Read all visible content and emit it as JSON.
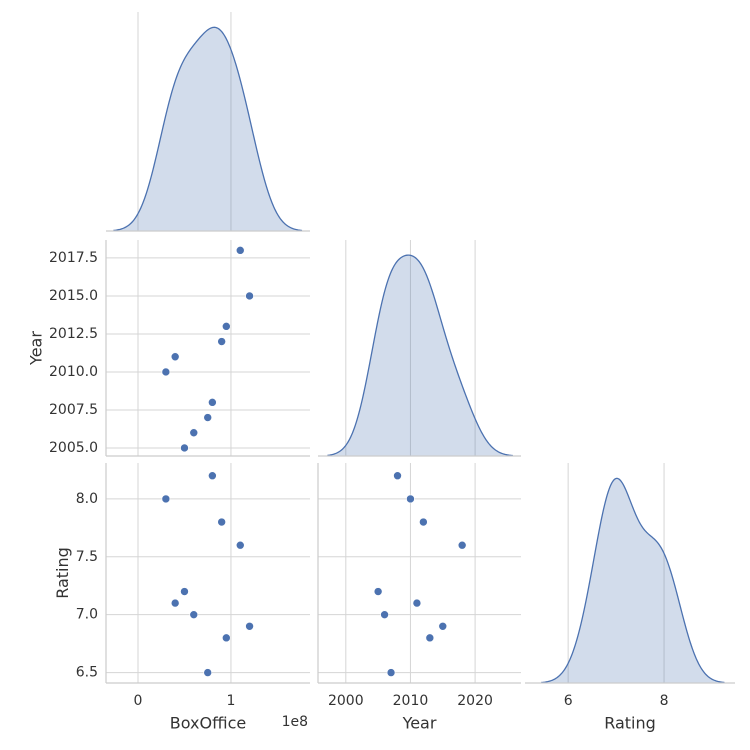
{
  "chart_data": {
    "type": "pairplot",
    "corner": true,
    "diagonal": "kde",
    "grid": true,
    "color": "#4c72b0",
    "variables": [
      {
        "name": "BoxOffice",
        "values": [
          80000000,
          30000000,
          90000000,
          110000000,
          50000000,
          40000000,
          60000000,
          120000000,
          95000000,
          75000000
        ],
        "xlim": [
          -34400000,
          185000000
        ],
        "xticks": [
          0,
          {
            "value": 100000000,
            "label": "1"
          }
        ],
        "offset_label": "1e8"
      },
      {
        "name": "Year",
        "values": [
          2008,
          2010,
          2012,
          2018,
          2005,
          2011,
          2006,
          2015,
          2013,
          2007
        ],
        "xlim": [
          1995.7,
          2027.1
        ],
        "xticks": [
          2000,
          2010,
          2020
        ],
        "ylim": [
          2004.47,
          2018.68
        ],
        "yticks": [
          {
            "value": 2005,
            "label": "2005.0"
          },
          {
            "value": 2007.5,
            "label": "2007.5"
          },
          {
            "value": 2010,
            "label": "2010.0"
          },
          {
            "value": 2012.5,
            "label": "2012.5"
          },
          {
            "value": 2015,
            "label": "2015.0"
          },
          {
            "value": 2017.5,
            "label": "2017.5"
          }
        ]
      },
      {
        "name": "Rating",
        "values": [
          8.2,
          8.0,
          7.8,
          7.6,
          7.2,
          7.1,
          7.0,
          6.9,
          6.8,
          6.5
        ],
        "xlim": [
          5.1,
          9.48
        ],
        "xticks": [
          6,
          8
        ],
        "ylim": [
          6.41,
          8.31
        ],
        "yticks": [
          6.5,
          {
            "value": 7,
            "label": "7.0"
          },
          7.5,
          {
            "value": 8,
            "label": "8.0"
          }
        ]
      }
    ]
  }
}
